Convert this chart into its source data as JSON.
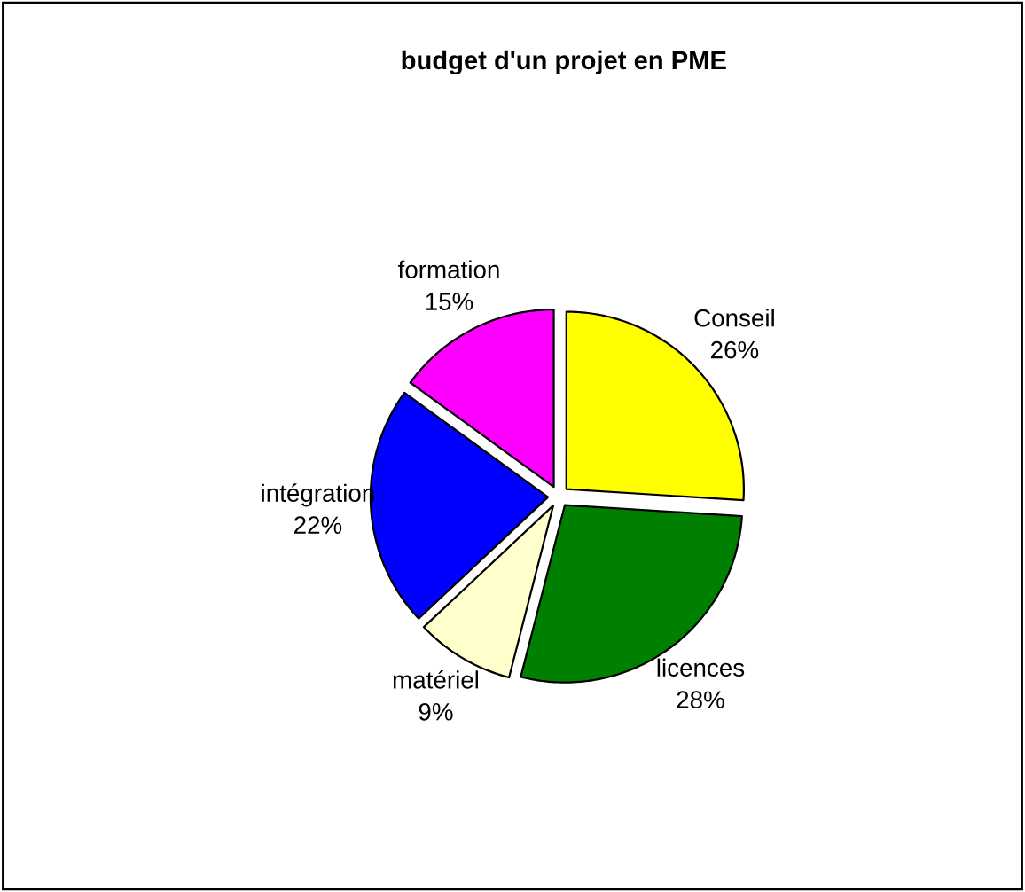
{
  "chart_data": {
    "type": "pie",
    "title": "budget d'un projet en PME",
    "categories": [
      "Conseil",
      "licences",
      "matériel",
      "intégration",
      "formation"
    ],
    "values": [
      26,
      28,
      9,
      22,
      15
    ],
    "value_labels": [
      "26%",
      "28%",
      "9%",
      "22%",
      "15%"
    ],
    "colors": [
      "#ffff00",
      "#008000",
      "#ffffcc",
      "#0000ff",
      "#ff00ff"
    ],
    "legend": false
  }
}
